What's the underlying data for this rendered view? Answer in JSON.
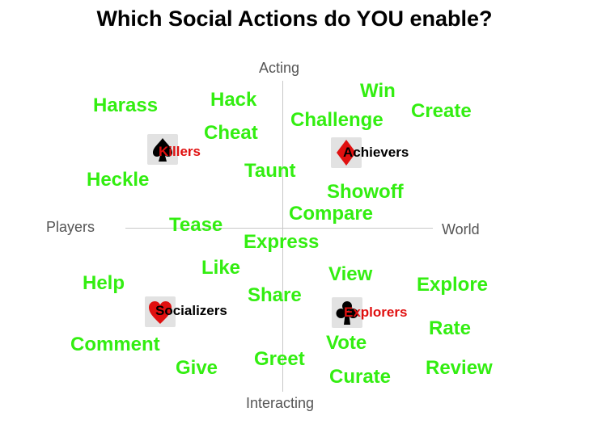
{
  "title": "Which Social Actions do YOU enable?",
  "axes": {
    "top": "Acting",
    "bottom": "Interacting",
    "left": "Players",
    "right": "World"
  },
  "player_types": {
    "killers": {
      "label": "Killers",
      "icon": "spade-icon",
      "color": "#e01010"
    },
    "achievers": {
      "label": "Achievers",
      "icon": "diamond-icon",
      "color": "#000000"
    },
    "socializers": {
      "label": "Socializers",
      "icon": "heart-icon",
      "color": "#000000"
    },
    "explorers": {
      "label": "Explorers",
      "icon": "club-icon",
      "color": "#e01010"
    }
  },
  "actions": {
    "harass": "Harass",
    "hack": "Hack",
    "cheat": "Cheat",
    "heckle": "Heckle",
    "taunt": "Taunt",
    "win": "Win",
    "challenge": "Challenge",
    "create": "Create",
    "showoff": "Showoff",
    "compare": "Compare",
    "tease": "Tease",
    "express": "Express",
    "like": "Like",
    "help": "Help",
    "share": "Share",
    "view": "View",
    "explore": "Explore",
    "comment": "Comment",
    "give": "Give",
    "greet": "Greet",
    "vote": "Vote",
    "curate": "Curate",
    "rate": "Rate",
    "review": "Review"
  },
  "colors": {
    "action_text": "#33ee11",
    "axis_line": "#c8c8c8",
    "axis_text": "#555555"
  }
}
